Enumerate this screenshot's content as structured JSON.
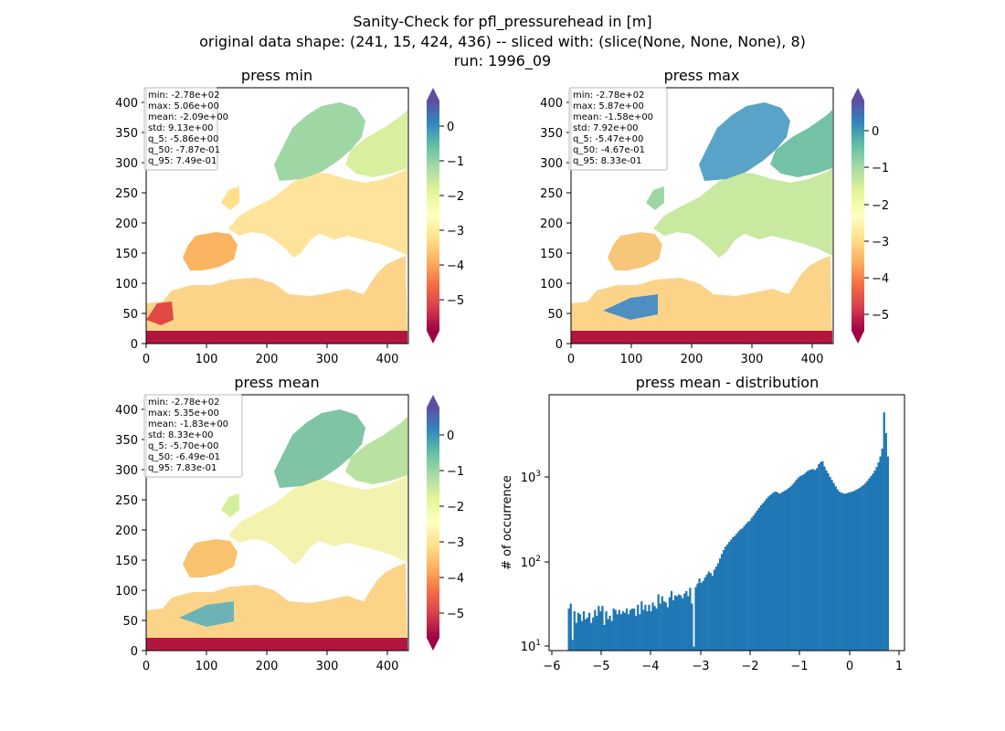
{
  "figure": {
    "title_lines": [
      "Sanity-Check for pfl_pressurehead in [m]",
      "original data shape: (241, 15, 424, 436) -- sliced with: (slice(None, None, None), 8)",
      "run: 1996_09"
    ]
  },
  "colormap": {
    "name": "Spectral",
    "vmin": -5.86,
    "vmax": 0.85
  },
  "chart_data": [
    {
      "type": "heatmap",
      "title": "press min",
      "xlim": [
        0,
        436
      ],
      "ylim": [
        0,
        424
      ],
      "x_ticks": [
        "0",
        "100",
        "200",
        "300",
        "400"
      ],
      "y_ticks": [
        "0",
        "50",
        "100",
        "150",
        "200",
        "250",
        "300",
        "350",
        "400"
      ],
      "colorbar_ticks": [
        "0",
        "−1",
        "−2",
        "−3",
        "−4",
        "−5"
      ],
      "stats": [
        "min: -2.78e+02",
        "max: 5.06e+00",
        "mean: -2.09e+00",
        "std: 9.13e+00",
        "q_5: -5.86e+00",
        "q_50: -7.87e-01",
        "q_95: 7.49e-01"
      ]
    },
    {
      "type": "heatmap",
      "title": "press max",
      "xlim": [
        0,
        436
      ],
      "ylim": [
        0,
        424
      ],
      "x_ticks": [
        "0",
        "100",
        "200",
        "300",
        "400"
      ],
      "y_ticks": [
        "0",
        "50",
        "100",
        "150",
        "200",
        "250",
        "300",
        "350",
        "400"
      ],
      "colorbar_ticks": [
        "0",
        "−1",
        "−2",
        "−3",
        "−4",
        "−5"
      ],
      "stats": [
        "min: -2.78e+02",
        "max: 5.87e+00",
        "mean: -1.58e+00",
        "std: 7.92e+00",
        "q_5: -5.47e+00",
        "q_50: -4.67e-01",
        "q_95: 8.33e-01"
      ]
    },
    {
      "type": "heatmap",
      "title": "press mean",
      "xlim": [
        0,
        436
      ],
      "ylim": [
        0,
        424
      ],
      "x_ticks": [
        "0",
        "100",
        "200",
        "300",
        "400"
      ],
      "y_ticks": [
        "0",
        "50",
        "100",
        "150",
        "200",
        "250",
        "300",
        "350",
        "400"
      ],
      "colorbar_ticks": [
        "0",
        "−1",
        "−2",
        "−3",
        "−4",
        "−5"
      ],
      "stats": [
        "min: -2.78e+02",
        "max: 5.35e+00",
        "mean: -1.83e+00",
        "std: 8.33e+00",
        "q_5: -5.70e+00",
        "q_50: -6.49e-01",
        "q_95: 7.83e-01"
      ]
    },
    {
      "type": "bar",
      "title": "press mean - distribution",
      "ylabel": "# of occurrence",
      "yscale": "log",
      "xlim": [
        -6.1,
        1.1
      ],
      "ylim": [
        9,
        9000
      ],
      "x_ticks": [
        "−6",
        "−5",
        "−4",
        "−3",
        "−2",
        "−1",
        "0",
        "1"
      ],
      "y_ticks": [
        "10",
        "10",
        "10"
      ],
      "y_tick_exponents": [
        "1",
        "2",
        "3"
      ],
      "bin_start": -5.72,
      "bin_end": 0.78,
      "values": [
        28,
        32,
        12,
        26,
        19,
        25,
        24,
        20,
        26,
        21,
        22,
        25,
        19,
        22,
        27,
        23,
        30,
        26,
        30,
        18,
        26,
        21,
        23,
        20,
        28,
        27,
        24,
        27,
        24,
        26,
        25,
        28,
        24,
        27,
        28,
        28,
        23,
        31,
        24,
        34,
        27,
        31,
        26,
        31,
        26,
        33,
        30,
        28,
        41,
        32,
        39,
        34,
        33,
        29,
        38,
        45,
        35,
        40,
        39,
        41,
        40,
        37,
        42,
        45,
        39,
        49,
        32,
        10,
        50,
        55,
        63,
        56,
        59,
        65,
        70,
        76,
        73,
        68,
        80,
        87,
        95,
        108,
        122,
        136,
        149,
        158,
        169,
        180,
        192,
        200,
        212,
        225,
        237,
        244,
        260,
        275,
        290,
        300,
        325,
        345,
        370,
        398,
        425,
        455,
        480,
        510,
        545,
        575,
        600,
        625,
        650,
        660,
        640,
        620,
        640,
        660,
        680,
        700,
        730,
        760,
        800,
        850,
        910,
        960,
        1000,
        1020,
        1050,
        1100,
        1150,
        1180,
        1200,
        1210,
        1180,
        1240,
        1380,
        1460,
        1500,
        1300,
        1170,
        1080,
        980,
        900,
        830,
        760,
        700,
        660,
        640,
        630,
        620,
        630,
        640,
        650,
        660,
        670,
        690,
        710,
        730,
        760,
        790,
        830,
        880,
        940,
        1000,
        1070,
        1160,
        1280,
        1450,
        1700,
        2100,
        5600,
        3200,
        1700
      ]
    }
  ]
}
